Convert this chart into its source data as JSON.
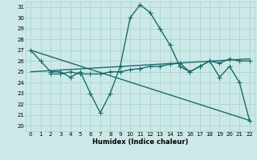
{
  "xlabel": "Humidex (Indice chaleur)",
  "xlim": [
    -0.5,
    22.5
  ],
  "ylim": [
    19.5,
    31.5
  ],
  "yticks": [
    20,
    21,
    22,
    23,
    24,
    25,
    26,
    27,
    28,
    29,
    30,
    31
  ],
  "xticks": [
    0,
    1,
    2,
    3,
    4,
    5,
    6,
    7,
    8,
    9,
    10,
    11,
    12,
    13,
    14,
    15,
    16,
    17,
    18,
    19,
    20,
    21,
    22
  ],
  "bg_color": "#cce9e8",
  "grid_color": "#aad4d2",
  "line_color": "#1a6b6b",
  "series": [
    {
      "x": [
        0,
        1,
        2,
        3,
        4,
        5,
        6,
        7,
        8,
        9,
        10,
        11,
        12,
        13,
        14,
        15,
        16,
        17,
        18,
        19,
        20,
        21,
        22
      ],
      "y": [
        27.0,
        26.0,
        25.0,
        25.0,
        24.5,
        25.0,
        23.0,
        21.2,
        23.0,
        25.5,
        30.0,
        31.2,
        30.5,
        29.0,
        27.5,
        25.5,
        25.0,
        25.5,
        26.0,
        24.5,
        25.5,
        24.0,
        20.5
      ],
      "marker": "+",
      "ms": 4,
      "lw": 1.0
    },
    {
      "x": [
        2,
        3,
        4,
        5,
        6,
        7,
        8,
        9,
        10,
        11,
        12,
        13,
        14,
        15,
        16,
        17,
        18,
        19,
        20,
        21,
        22
      ],
      "y": [
        24.8,
        24.8,
        25.0,
        24.8,
        24.8,
        24.8,
        25.0,
        25.0,
        25.2,
        25.3,
        25.5,
        25.5,
        25.7,
        25.8,
        25.0,
        25.5,
        26.0,
        25.8,
        26.2,
        26.0,
        26.0
      ],
      "marker": "+",
      "ms": 4,
      "lw": 1.0
    },
    {
      "x": [
        0,
        22
      ],
      "y": [
        25.0,
        26.2
      ],
      "marker": null,
      "ms": 0,
      "lw": 1.0
    },
    {
      "x": [
        0,
        22
      ],
      "y": [
        27.0,
        20.5
      ],
      "marker": null,
      "ms": 0,
      "lw": 1.0
    }
  ]
}
